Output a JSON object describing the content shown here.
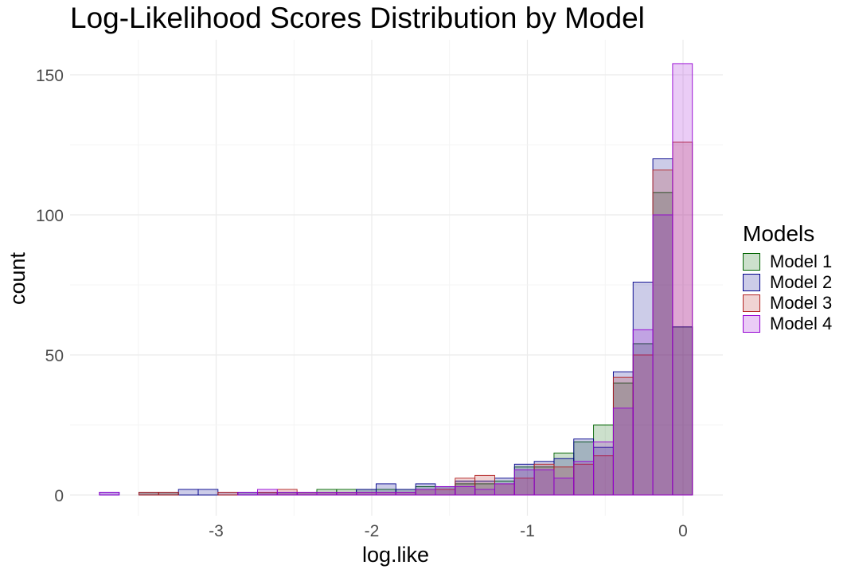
{
  "chart_data": {
    "type": "histogram",
    "title": "Log-Likelihood Scores Distribution by Model",
    "xlabel": "log.like",
    "ylabel": "count",
    "xlim": [
      -3.75,
      0.05
    ],
    "ylim": [
      0,
      155
    ],
    "x_ticks": [
      -3,
      -2,
      -1,
      0
    ],
    "y_ticks": [
      0,
      50,
      100,
      150
    ],
    "grid": true,
    "legend": {
      "title": "Models",
      "placement": "right"
    },
    "bin_width": 0.127,
    "bin_starts": [
      -3.75,
      -3.623,
      -3.496,
      -3.369,
      -3.242,
      -3.115,
      -2.988,
      -2.861,
      -2.734,
      -2.607,
      -2.48,
      -2.353,
      -2.226,
      -2.099,
      -1.972,
      -1.845,
      -1.718,
      -1.591,
      -1.464,
      -1.337,
      -1.21,
      -1.083,
      -0.956,
      -0.829,
      -0.702,
      -0.575,
      -0.448,
      -0.321,
      -0.194,
      -0.067
    ],
    "series": [
      {
        "name": "Model 1",
        "color": "#006400",
        "fill": "rgba(0,100,0,0.2)",
        "values": [
          0,
          0,
          1,
          1,
          0,
          0,
          0,
          1,
          1,
          1,
          1,
          2,
          2,
          2,
          2,
          2,
          3,
          3,
          4,
          4,
          5,
          10,
          10,
          15,
          19,
          25,
          40,
          54,
          108,
          60
        ]
      },
      {
        "name": "Model 2",
        "color": "#00008b",
        "fill": "rgba(0,0,139,0.2)",
        "values": [
          1,
          0,
          1,
          1,
          2,
          2,
          1,
          1,
          1,
          1,
          1,
          1,
          1,
          2,
          4,
          2,
          4,
          3,
          5,
          5,
          6,
          11,
          12,
          13,
          20,
          17,
          44,
          76,
          120,
          60
        ]
      },
      {
        "name": "Model 3",
        "color": "#b22222",
        "fill": "rgba(178,34,34,0.2)",
        "values": [
          0,
          0,
          1,
          1,
          0,
          0,
          1,
          0,
          1,
          2,
          1,
          1,
          1,
          1,
          1,
          1,
          2,
          2,
          6,
          7,
          4,
          6,
          11,
          10,
          11,
          14,
          42,
          50,
          116,
          126
        ]
      },
      {
        "name": "Model 4",
        "color": "#9400d3",
        "fill": "rgba(148,0,211,0.2)",
        "values": [
          1,
          0,
          0,
          0,
          0,
          0,
          0,
          1,
          2,
          1,
          1,
          1,
          1,
          1,
          1,
          1,
          2,
          3,
          3,
          2,
          4,
          9,
          9,
          6,
          12,
          19,
          31,
          59,
          100,
          154
        ]
      }
    ]
  }
}
